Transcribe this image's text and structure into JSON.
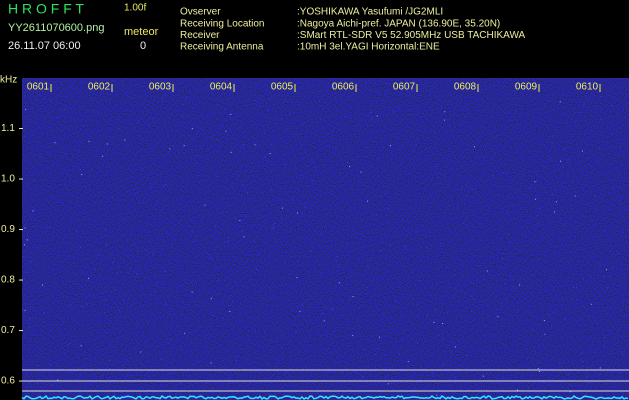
{
  "header": {
    "title": "H R O F F T",
    "version": "1.00f",
    "filename": "YY2611070600.png",
    "datetime": "26.11.07 06:00",
    "meteor_label": "meteor",
    "meteor_count": 0,
    "info": [
      {
        "label": "Ovserver",
        "value": ":YOSHIKAWA Yasufumi /JG2MLI"
      },
      {
        "label": "Receiving Location",
        "value": ":Nagoya Aichi-pref. JAPAN (136.90E, 35.20N)"
      },
      {
        "label": "Receiver",
        "value": ":SMart RTL-SDR V5 52.905MHz USB TACHIKAWA"
      },
      {
        "label": "Receiving Antenna",
        "value": ":10mH 3el.YAGI Horizontal:ENE"
      }
    ]
  },
  "chart_data": {
    "type": "spectrogram",
    "y_label": "kHz",
    "categories": [
      "0601",
      "0602",
      "0603",
      "0604",
      "0605",
      "0606",
      "0607",
      "0608",
      "0609",
      "0610"
    ],
    "ylim": [
      0.5625,
      1.2
    ],
    "yticks": [
      1.1,
      {
        "value": 1.0,
        "label": "1.0"
      },
      0.9,
      0.8,
      0.7,
      0.6
    ]
  }
}
